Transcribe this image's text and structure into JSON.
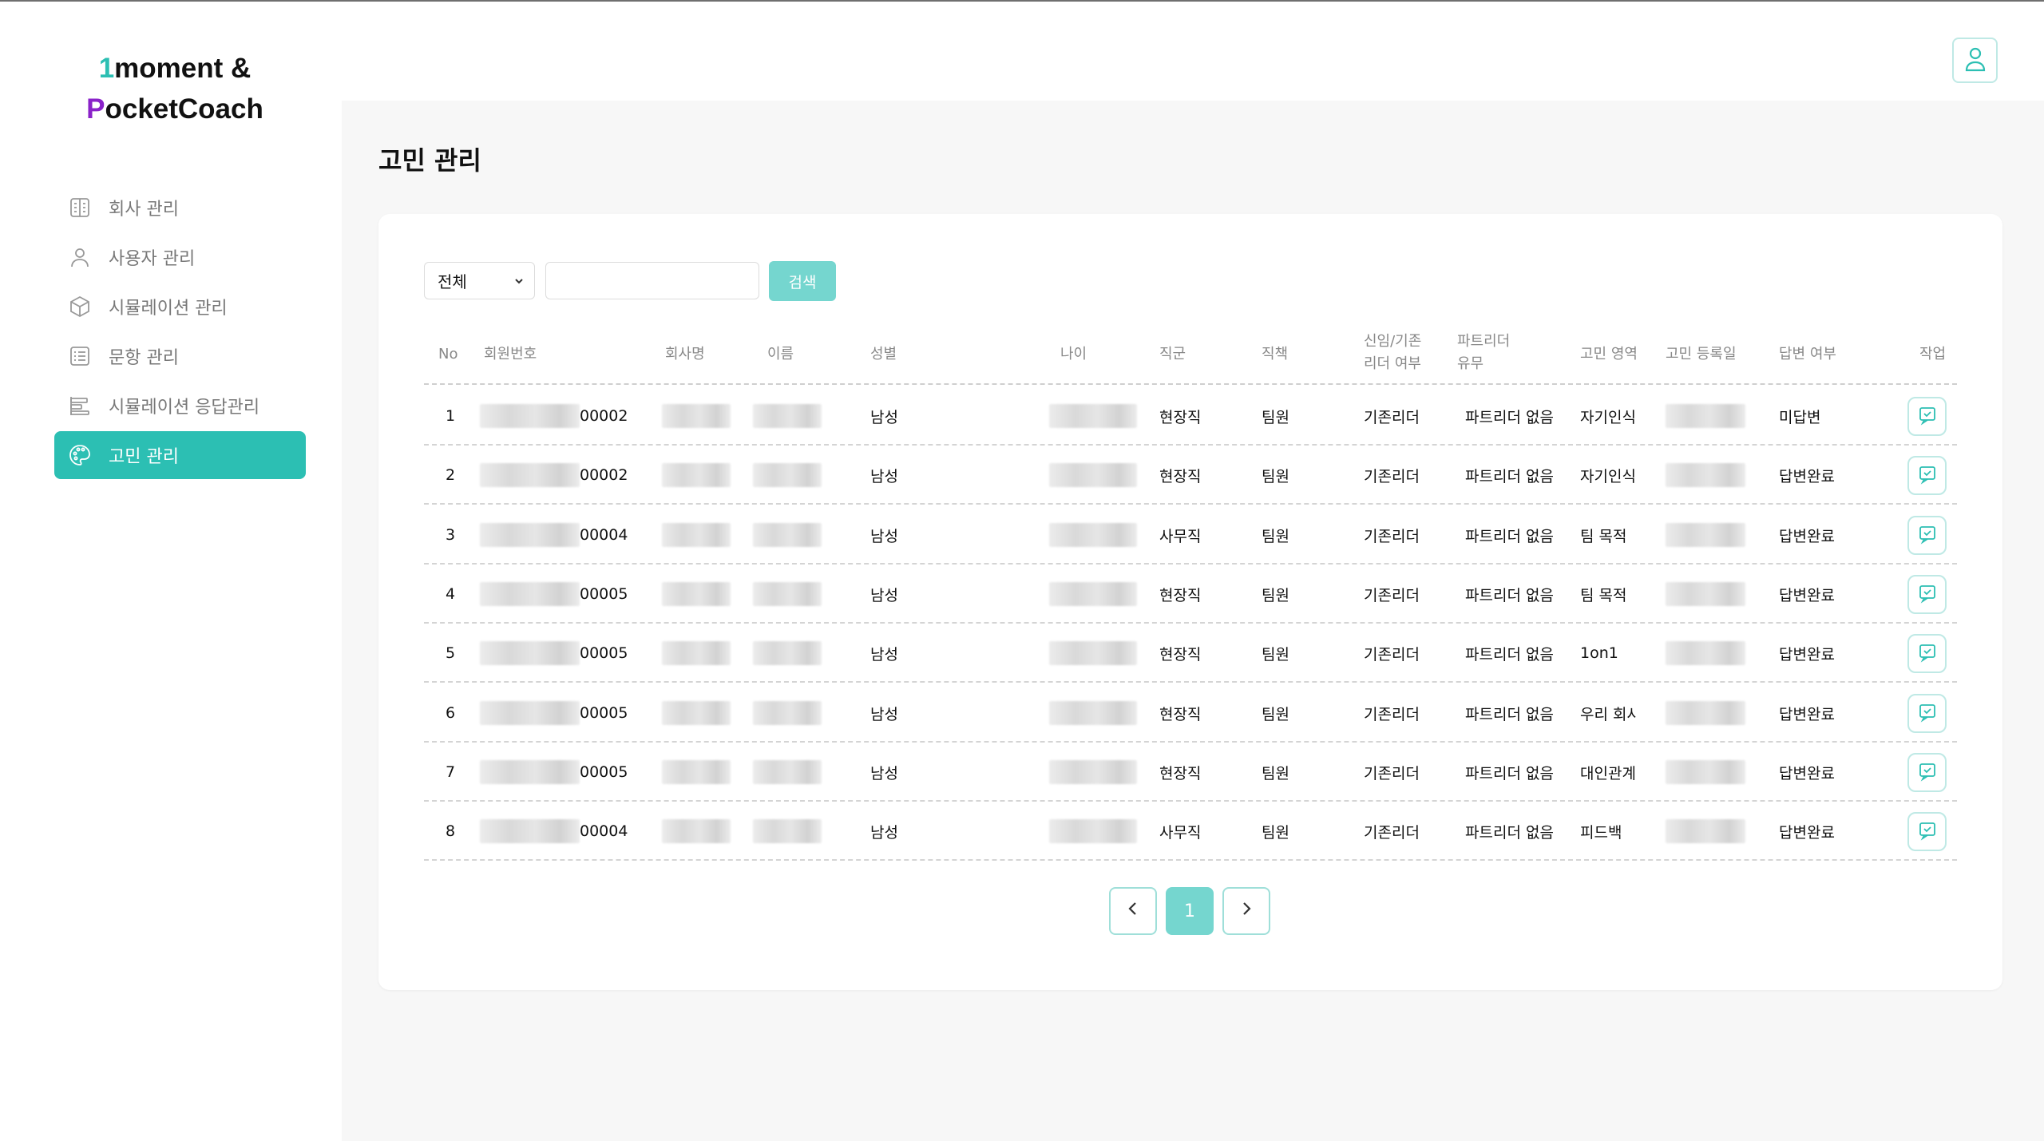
{
  "brand": {
    "line1_initial": "1",
    "line1_rest": "moment &",
    "line2_initial": "P",
    "line2_rest": "ocketCoach",
    "initial1_color": "#2cbfb3",
    "initial2_color": "#8a22c9"
  },
  "sidebar": {
    "items": [
      {
        "label": "회사 관리",
        "icon": "building-icon"
      },
      {
        "label": "사용자 관리",
        "icon": "user-icon"
      },
      {
        "label": "시뮬레이션 관리",
        "icon": "cube-icon"
      },
      {
        "label": "문항 관리",
        "icon": "list-icon"
      },
      {
        "label": "시뮬레이션 응답관리",
        "icon": "bars-icon"
      },
      {
        "label": "고민 관리",
        "icon": "palette-icon",
        "active": true
      }
    ]
  },
  "page": {
    "title": "고민 관리"
  },
  "filter": {
    "select_value": "전체",
    "search_value": "",
    "search_button": "검색"
  },
  "table": {
    "headers": {
      "no": "No",
      "member_id": "회원번호",
      "company": "회사명",
      "name": "이름",
      "gender": "성별",
      "age": "나이",
      "job_group": "직군",
      "position": "직책",
      "leader_type_line1": "신임/기존",
      "leader_type_line2": "리더 여부",
      "partner_line1": "파트리더",
      "partner_line2": "유무",
      "area": "고민 영역",
      "reg_date": "고민 등록일",
      "answer": "답변 여부",
      "action": "작업"
    },
    "rows": [
      {
        "no": "1",
        "member_id": "00002",
        "gender": "남성",
        "job": "현장직",
        "position": "팀원",
        "leader": "기존리더",
        "partner": "파트리더 없음",
        "area": "자기인식",
        "answer": "미답변"
      },
      {
        "no": "2",
        "member_id": "00002",
        "gender": "남성",
        "job": "현장직",
        "position": "팀원",
        "leader": "기존리더",
        "partner": "파트리더 없음",
        "area": "자기인식",
        "answer": "답변완료"
      },
      {
        "no": "3",
        "member_id": "00004",
        "gender": "남성",
        "job": "사무직",
        "position": "팀원",
        "leader": "기존리더",
        "partner": "파트리더 없음",
        "area": "팀 목적",
        "answer": "답변완료"
      },
      {
        "no": "4",
        "member_id": "00005",
        "gender": "남성",
        "job": "현장직",
        "position": "팀원",
        "leader": "기존리더",
        "partner": "파트리더 없음",
        "area": "팀 목적",
        "answer": "답변완료"
      },
      {
        "no": "5",
        "member_id": "00005",
        "gender": "남성",
        "job": "현장직",
        "position": "팀원",
        "leader": "기존리더",
        "partner": "파트리더 없음",
        "area": "1on1",
        "answer": "답변완료"
      },
      {
        "no": "6",
        "member_id": "00005",
        "gender": "남성",
        "job": "현장직",
        "position": "팀원",
        "leader": "기존리더",
        "partner": "파트리더 없음",
        "area": "우리 회사",
        "answer": "답변완료"
      },
      {
        "no": "7",
        "member_id": "00005",
        "gender": "남성",
        "job": "현장직",
        "position": "팀원",
        "leader": "기존리더",
        "partner": "파트리더 없음",
        "area": "대인관계",
        "answer": "답변완료"
      },
      {
        "no": "8",
        "member_id": "00004",
        "gender": "남성",
        "job": "사무직",
        "position": "팀원",
        "leader": "기존리더",
        "partner": "파트리더 없음",
        "area": "피드백",
        "answer": "답변완료"
      }
    ]
  },
  "pagination": {
    "current": "1"
  },
  "colors": {
    "accent": "#2cbfb3",
    "accent_light": "#75d6cf"
  }
}
